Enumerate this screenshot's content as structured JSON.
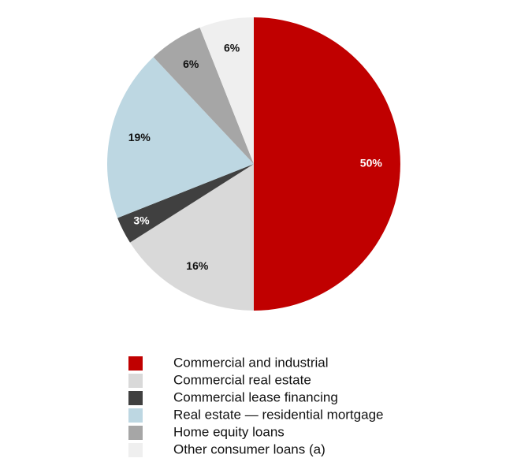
{
  "chart_data": {
    "type": "pie",
    "categories": [
      "Commercial and industrial",
      "Commercial real estate",
      "Commercial lease financing",
      "Real estate — residential mortgage",
      "Home equity loans",
      "Other consumer loans (a)"
    ],
    "values": [
      50,
      16,
      3,
      19,
      6,
      6
    ],
    "value_labels": [
      "50%",
      "16%",
      "3%",
      "19%",
      "6%",
      "6%"
    ],
    "colors": [
      "#c00000",
      "#d9d9d9",
      "#404040",
      "#bdd7e2",
      "#a6a6a6",
      "#efefef"
    ]
  }
}
